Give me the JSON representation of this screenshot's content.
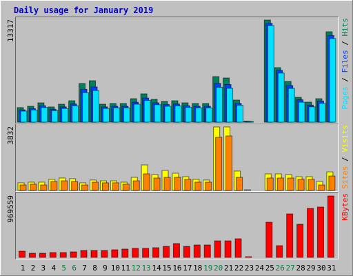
{
  "chart_data": {
    "type": "bar",
    "title": "Daily usage for January 2019",
    "legend_separator": "/",
    "categories": [
      "1",
      "2",
      "3",
      "4",
      "5",
      "6",
      "7",
      "8",
      "9",
      "10",
      "11",
      "12",
      "13",
      "14",
      "15",
      "16",
      "17",
      "18",
      "19",
      "20",
      "21",
      "22",
      "23",
      "24",
      "25",
      "26",
      "27",
      "28",
      "29",
      "30",
      "31"
    ],
    "category_colors": [
      "#000000",
      "#000000",
      "#000000",
      "#000000",
      "#008040",
      "#008040",
      "#000000",
      "#000000",
      "#000000",
      "#000000",
      "#000000",
      "#008040",
      "#008040",
      "#000000",
      "#000000",
      "#000000",
      "#000000",
      "#000000",
      "#008040",
      "#008040",
      "#000000",
      "#000000",
      "#000000",
      "#000000",
      "#000000",
      "#008040",
      "#008040",
      "#000000",
      "#000000",
      "#000000",
      "#000000"
    ],
    "panels": [
      {
        "ylim": [
          0,
          13317
        ],
        "yticks": [
          13317
        ],
        "series": [
          {
            "name": "Hits",
            "color": "#00805c",
            "values": [
              1900,
              2070,
              2520,
              1980,
              2340,
              2790,
              5040,
              5400,
              2340,
              2430,
              2430,
              3060,
              3690,
              2970,
              2700,
              2790,
              2520,
              2430,
              2430,
              5940,
              5760,
              2880,
              120,
              0,
              13317,
              7110,
              5310,
              3240,
              2610,
              3060,
              11790
            ]
          },
          {
            "name": "Files",
            "color": "#0040ff",
            "values": [
              1600,
              1760,
              2140,
              1680,
              1990,
              2370,
              4280,
              4590,
              1990,
              2070,
              2070,
              2600,
              3140,
              2520,
              2300,
              2370,
              2140,
              2070,
              2070,
              5050,
              4900,
              2450,
              100,
              0,
              12900,
              6750,
              4780,
              2920,
              2220,
              2750,
              11300
            ]
          },
          {
            "name": "Pages",
            "color": "#00e0ff",
            "values": [
              1440,
              1580,
              1920,
              1510,
              1790,
              2130,
              3850,
              4130,
              1790,
              1860,
              1860,
              2340,
              2830,
              2270,
              2070,
              2130,
              1920,
              1860,
              1860,
              4550,
              4410,
              2210,
              90,
              0,
              12600,
              6400,
              4400,
              2600,
              2000,
              2450,
              10900
            ]
          }
        ]
      },
      {
        "ylim": [
          0,
          3832
        ],
        "yticks": [
          3832
        ],
        "series": [
          {
            "name": "Visits",
            "color": "#ffff00",
            "values": [
              460,
              500,
              500,
              670,
              750,
              710,
              460,
              630,
              580,
              580,
              500,
              790,
              1540,
              960,
              1210,
              1040,
              830,
              670,
              630,
              3832,
              3832,
              1170,
              40,
              0,
              1000,
              1000,
              960,
              830,
              830,
              540,
              1120
            ]
          },
          {
            "name": "Sites",
            "color": "#ff8000",
            "values": [
              330,
              380,
              330,
              540,
              580,
              540,
              330,
              500,
              460,
              460,
              380,
              580,
              1000,
              750,
              790,
              790,
              670,
              500,
              500,
              3210,
              3290,
              790,
              0,
              0,
              750,
              750,
              750,
              670,
              670,
              330,
              870
            ]
          }
        ]
      },
      {
        "ylim": [
          0,
          969559
        ],
        "yticks": [
          969559
        ],
        "series": [
          {
            "name": "KBytes",
            "color": "#ff0000",
            "values": [
              98000,
              65000,
              65000,
              76000,
              76000,
              87000,
              109000,
              109000,
              109000,
              120000,
              131000,
              142000,
              142000,
              153000,
              174000,
              218000,
              174000,
              196000,
              196000,
              261000,
              261000,
              294000,
              11000,
              0,
              555000,
              185000,
              686000,
              523000,
              773000,
              795000,
              969559
            ]
          }
        ]
      }
    ]
  }
}
